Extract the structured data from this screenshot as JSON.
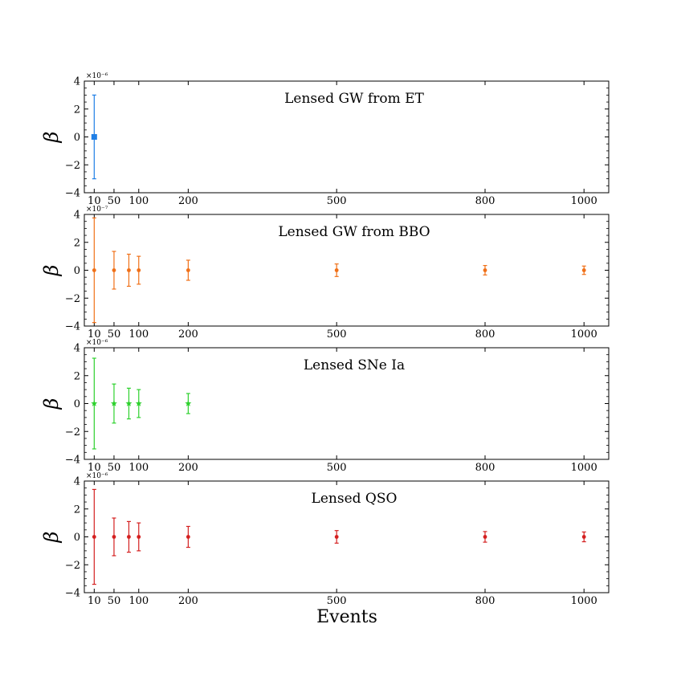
{
  "figure": {
    "xlabel": "Events"
  },
  "chart_data": [
    {
      "type": "scatter",
      "title": "Lensed GW from ET",
      "ylabel": "β",
      "scale_label": "×10⁻⁶",
      "marker": "square",
      "color": "#1f7fe6",
      "x_ticks": [
        10,
        50,
        100,
        200,
        500,
        800,
        1000
      ],
      "y_ticks": [
        -4,
        -2,
        0,
        2,
        4
      ],
      "xlim": [
        -10,
        1050
      ],
      "ylim": [
        -4,
        4
      ],
      "series": [
        {
          "x": [
            10
          ],
          "y": [
            0
          ],
          "yerr": [
            3.0
          ]
        }
      ]
    },
    {
      "type": "scatter",
      "title": "Lensed GW from BBO",
      "ylabel": "β",
      "scale_label": "×10⁻⁷",
      "marker": "circle",
      "color": "#f07018",
      "x_ticks": [
        10,
        50,
        100,
        200,
        500,
        800,
        1000
      ],
      "y_ticks": [
        -4,
        -2,
        0,
        2,
        4
      ],
      "xlim": [
        -10,
        1050
      ],
      "ylim": [
        -4,
        4
      ],
      "series": [
        {
          "x": [
            10,
            50,
            80,
            100,
            200,
            500,
            800,
            1000
          ],
          "y": [
            0,
            0,
            0,
            0,
            0,
            0,
            0,
            0
          ],
          "yerr": [
            3.75,
            1.35,
            1.15,
            1.0,
            0.72,
            0.45,
            0.34,
            0.3
          ]
        }
      ]
    },
    {
      "type": "scatter",
      "title": "Lensed SNe Ia",
      "ylabel": "β",
      "scale_label": "×10⁻⁶",
      "marker": "star",
      "color": "#2ed12e",
      "x_ticks": [
        10,
        50,
        100,
        200,
        500,
        800,
        1000
      ],
      "y_ticks": [
        -4,
        -2,
        0,
        2,
        4
      ],
      "xlim": [
        -10,
        1050
      ],
      "ylim": [
        -4,
        4
      ],
      "series": [
        {
          "x": [
            10,
            50,
            80,
            100,
            200
          ],
          "y": [
            0,
            0,
            0,
            0,
            0
          ],
          "yerr": [
            3.25,
            1.4,
            1.1,
            1.0,
            0.72
          ]
        }
      ]
    },
    {
      "type": "scatter",
      "title": "Lensed QSO",
      "ylabel": "β",
      "scale_label": "×10⁻⁶",
      "marker": "circle",
      "color": "#d42020",
      "x_ticks": [
        10,
        50,
        100,
        200,
        500,
        800,
        1000
      ],
      "y_ticks": [
        -4,
        -2,
        0,
        2,
        4
      ],
      "xlim": [
        -10,
        1050
      ],
      "ylim": [
        -4,
        4
      ],
      "series": [
        {
          "x": [
            10,
            50,
            80,
            100,
            200,
            500,
            800,
            1000
          ],
          "y": [
            0,
            0,
            0,
            0,
            0,
            0,
            0,
            0
          ],
          "yerr": [
            3.4,
            1.35,
            1.1,
            1.0,
            0.75,
            0.45,
            0.38,
            0.35
          ]
        }
      ]
    }
  ]
}
